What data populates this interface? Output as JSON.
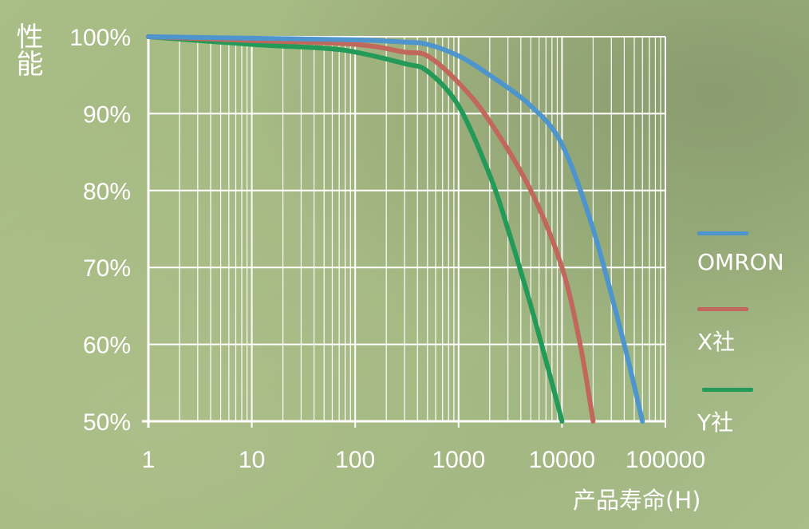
{
  "chart_data": {
    "type": "line",
    "title": "",
    "ylabel": "性能",
    "xlabel": "产品寿命(H)",
    "x_scale": "log",
    "xlim": [
      1,
      100000
    ],
    "ylim": [
      50,
      100
    ],
    "x_ticks": [
      "1",
      "10",
      "100",
      "1000",
      "10000",
      "100000"
    ],
    "y_ticks": [
      "50%",
      "60%",
      "70%",
      "80%",
      "90%",
      "100%"
    ],
    "grid": true,
    "legend_position": "right",
    "series": [
      {
        "name": "OMRON",
        "color": "#4d95cc",
        "points": [
          [
            1,
            100
          ],
          [
            10,
            99.8
          ],
          [
            100,
            99.6
          ],
          [
            300,
            99.3
          ],
          [
            500,
            99
          ],
          [
            1000,
            97.5
          ],
          [
            2000,
            95
          ],
          [
            5000,
            91
          ],
          [
            10000,
            86
          ],
          [
            20000,
            75
          ],
          [
            40000,
            60
          ],
          [
            60000,
            50
          ]
        ]
      },
      {
        "name": "X社",
        "color": "#c2675c",
        "points": [
          [
            1,
            100
          ],
          [
            10,
            99.5
          ],
          [
            100,
            99
          ],
          [
            300,
            98
          ],
          [
            500,
            97.5
          ],
          [
            1000,
            94
          ],
          [
            2000,
            89
          ],
          [
            5000,
            80
          ],
          [
            10000,
            70
          ],
          [
            15000,
            60
          ],
          [
            20000,
            50
          ]
        ]
      },
      {
        "name": "Y社",
        "color": "#239a58",
        "points": [
          [
            1,
            100
          ],
          [
            10,
            99
          ],
          [
            50,
            98.5
          ],
          [
            100,
            98
          ],
          [
            300,
            96.5
          ],
          [
            500,
            95.5
          ],
          [
            1000,
            91
          ],
          [
            2000,
            82
          ],
          [
            3000,
            75
          ],
          [
            5000,
            65
          ],
          [
            8000,
            55
          ],
          [
            10000,
            50
          ]
        ]
      }
    ]
  }
}
